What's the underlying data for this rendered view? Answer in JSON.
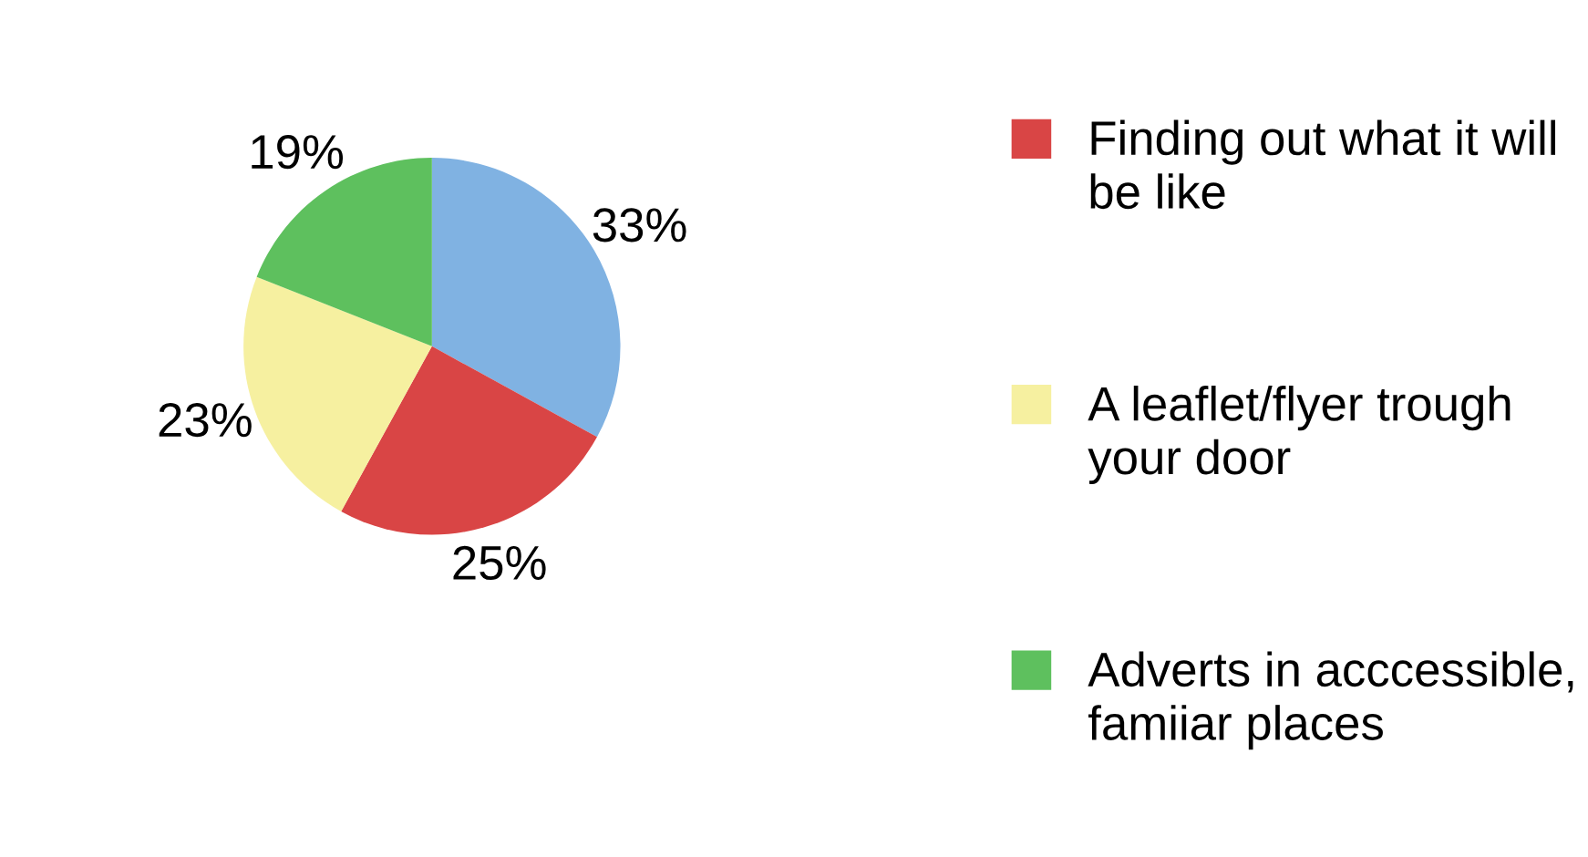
{
  "chart_data": {
    "type": "pie",
    "categories": [
      null,
      "Finding out what it will be like",
      "A leaflet/flyer trough your door",
      "Adverts in acccessible, famiiar places"
    ],
    "values": [
      33,
      25,
      23,
      19
    ],
    "value_labels": [
      "33%",
      "25%",
      "23%",
      "19%"
    ],
    "colors": [
      "#80b2e2",
      "#d94545",
      "#f6f0a0",
      "#5ec05e"
    ],
    "legend": "right"
  }
}
